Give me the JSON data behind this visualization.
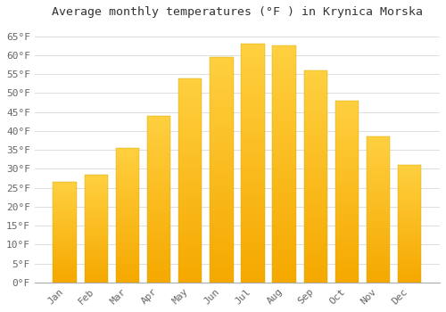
{
  "title": "Average monthly temperatures (°F ) in Krynica Morska",
  "months": [
    "Jan",
    "Feb",
    "Mar",
    "Apr",
    "May",
    "Jun",
    "Jul",
    "Aug",
    "Sep",
    "Oct",
    "Nov",
    "Dec"
  ],
  "values": [
    26.5,
    28.5,
    35.5,
    44.0,
    54.0,
    59.5,
    63.0,
    62.5,
    56.0,
    48.0,
    38.5,
    31.0
  ],
  "bar_color_bottom": "#F5A800",
  "bar_color_top": "#FFD040",
  "background_color": "#FFFFFF",
  "grid_color": "#DDDDDD",
  "text_color": "#666666",
  "ylim": [
    0,
    68
  ],
  "yticks": [
    0,
    5,
    10,
    15,
    20,
    25,
    30,
    35,
    40,
    45,
    50,
    55,
    60,
    65
  ],
  "title_fontsize": 9.5,
  "tick_fontsize": 8,
  "font_family": "monospace",
  "bar_width": 0.75,
  "figsize": [
    5.0,
    3.5
  ],
  "dpi": 100
}
